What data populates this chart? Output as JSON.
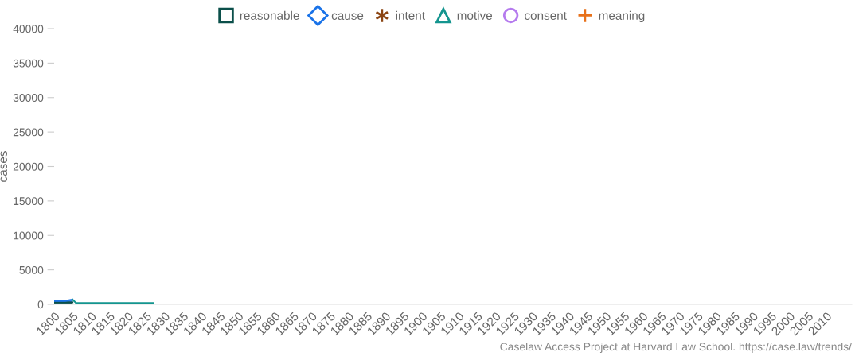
{
  "chart_data": {
    "type": "area",
    "stacked": true,
    "ylabel": "cases",
    "x": [
      1800,
      1801,
      1802,
      1803,
      1804,
      1805,
      1806,
      1810,
      1815,
      1820,
      1825,
      1827
    ],
    "series": [
      {
        "name": "reasonable",
        "color": "#0b4f4a",
        "values": [
          300,
          300,
          300,
          300,
          300,
          300,
          null,
          null,
          null,
          null,
          null,
          null
        ]
      },
      {
        "name": "cause",
        "color": "#1a73e8",
        "values": [
          200,
          200,
          200,
          200,
          300,
          400,
          null,
          null,
          null,
          null,
          null,
          null
        ]
      },
      {
        "name": "intent",
        "color": "#8b4513",
        "values": [
          null,
          null,
          null,
          null,
          null,
          null,
          null,
          null,
          null,
          null,
          null,
          null
        ]
      },
      {
        "name": "motive",
        "color": "#14958f",
        "values": [
          null,
          null,
          null,
          null,
          null,
          0,
          200,
          200,
          200,
          200,
          200,
          200
        ]
      },
      {
        "name": "consent",
        "color": "#b57bee",
        "values": [
          null,
          null,
          null,
          null,
          null,
          null,
          null,
          null,
          null,
          null,
          null,
          null
        ]
      },
      {
        "name": "meaning",
        "color": "#e8711a",
        "values": [
          null,
          null,
          null,
          null,
          null,
          null,
          null,
          null,
          null,
          null,
          null,
          null
        ]
      }
    ],
    "xlim": [
      1800,
      2017
    ],
    "xticks": [
      1800,
      1805,
      1810,
      1815,
      1820,
      1825,
      1830,
      1835,
      1840,
      1845,
      1850,
      1855,
      1860,
      1865,
      1870,
      1875,
      1880,
      1885,
      1890,
      1895,
      1900,
      1905,
      1910,
      1915,
      1920,
      1925,
      1930,
      1935,
      1940,
      1945,
      1950,
      1955,
      1960,
      1965,
      1970,
      1975,
      1980,
      1985,
      1990,
      1995,
      2000,
      2005,
      2010
    ],
    "ylim": [
      0,
      40000
    ],
    "yticks": [
      0,
      5000,
      10000,
      15000,
      20000,
      25000,
      30000,
      35000,
      40000
    ],
    "grid": false,
    "legend": "top",
    "annotations": [
      "Caselaw Access Project at Harvard Law School. https://case.law/trends/"
    ]
  }
}
